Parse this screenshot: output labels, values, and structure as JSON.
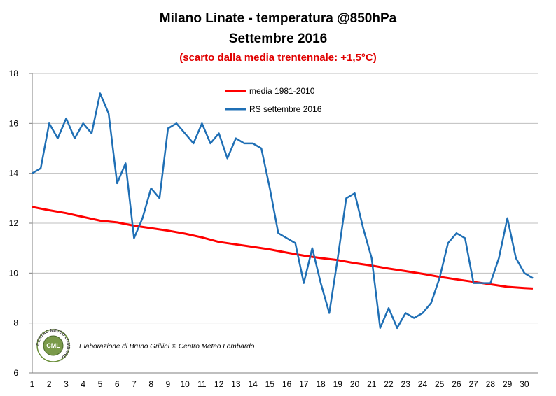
{
  "chart_data": {
    "type": "line",
    "title": "Milano Linate - temperatura @850hPa",
    "title_line2": "Settembre 2016",
    "subtitle": "(scarto dalla media trentennale: +1,5°C)",
    "xlabel": "",
    "ylabel": "",
    "ylim": [
      6,
      18
    ],
    "xlim": [
      1,
      30.5
    ],
    "y_ticks": [
      "6",
      "8",
      "10",
      "12",
      "14",
      "16",
      "18"
    ],
    "x_ticks": [
      "1",
      "2",
      "3",
      "4",
      "5",
      "6",
      "7",
      "8",
      "9",
      "10",
      "11",
      "12",
      "13",
      "14",
      "15",
      "16",
      "17",
      "18",
      "19",
      "20",
      "21",
      "22",
      "23",
      "24",
      "25",
      "26",
      "27",
      "28",
      "29",
      "30"
    ],
    "grid": "horizontal",
    "legend_position": "top-center",
    "series": [
      {
        "name": "media 1981-2010",
        "color": "#ff0000",
        "x": [
          1,
          2,
          3,
          4,
          5,
          6,
          7,
          8,
          9,
          10,
          11,
          12,
          13,
          14,
          15,
          16,
          17,
          18,
          19,
          20,
          21,
          22,
          23,
          24,
          25,
          26,
          27,
          28,
          29,
          30,
          30.5
        ],
        "y": [
          12.65,
          12.52,
          12.4,
          12.25,
          12.1,
          12.03,
          11.9,
          11.8,
          11.7,
          11.58,
          11.43,
          11.25,
          11.15,
          11.05,
          10.95,
          10.82,
          10.7,
          10.6,
          10.52,
          10.4,
          10.3,
          10.18,
          10.08,
          9.97,
          9.85,
          9.75,
          9.65,
          9.55,
          9.45,
          9.4,
          9.38
        ]
      },
      {
        "name": "RS settembre 2016",
        "color": "#1f6fb5",
        "x": [
          1,
          1.5,
          2,
          2.5,
          3,
          3.5,
          4,
          4.5,
          5,
          5.5,
          6,
          6.5,
          7,
          7.5,
          8,
          8.5,
          9,
          9.5,
          10,
          10.5,
          11,
          11.5,
          12,
          12.5,
          13,
          13.5,
          14,
          14.5,
          15,
          15.5,
          16,
          16.5,
          17,
          17.5,
          18,
          18.5,
          19,
          19.5,
          20,
          20.5,
          21,
          21.5,
          22,
          22.5,
          23,
          23.5,
          24,
          24.5,
          25,
          25.5,
          26,
          26.5,
          27,
          27.5,
          28,
          28.5,
          29,
          29.5,
          30,
          30.5
        ],
        "y": [
          14.0,
          14.2,
          16.0,
          15.4,
          16.2,
          15.4,
          16.0,
          15.6,
          17.2,
          16.4,
          13.6,
          14.4,
          11.4,
          12.2,
          13.4,
          13.0,
          15.8,
          16.0,
          15.6,
          15.2,
          16.0,
          15.2,
          15.6,
          14.6,
          15.4,
          15.2,
          15.2,
          15.0,
          13.4,
          11.6,
          11.4,
          11.2,
          9.6,
          11.0,
          9.6,
          8.4,
          10.6,
          13.0,
          13.2,
          11.8,
          10.6,
          7.8,
          8.6,
          7.8,
          8.4,
          8.2,
          8.4,
          8.8,
          9.8,
          11.2,
          11.6,
          11.4,
          9.6,
          9.6,
          9.6,
          10.6,
          12.2,
          10.6,
          10.0,
          9.8
        ]
      }
    ]
  },
  "credit": "Elaborazione di Bruno Grillini  © Centro Meteo Lombardo",
  "logo": {
    "name": "centro-meteo-lombardo-logo",
    "text_ring": "CENTRO METEO LOMBARDO",
    "text_center": "CML"
  }
}
